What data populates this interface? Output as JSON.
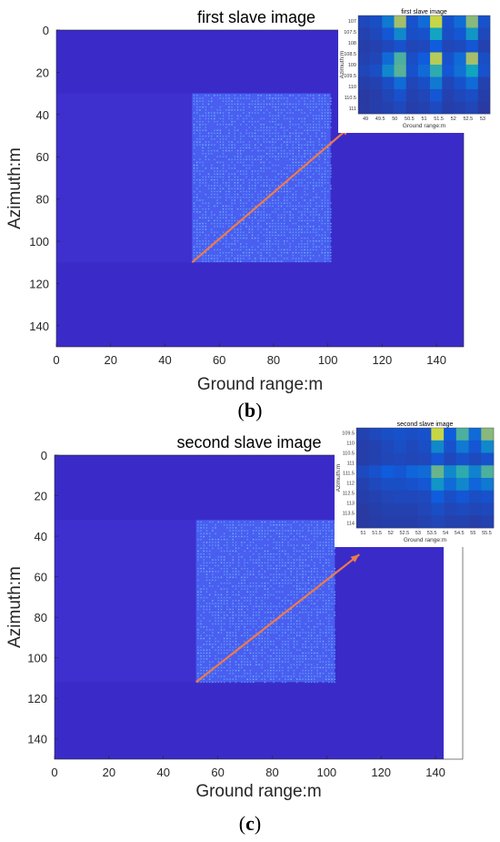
{
  "colors": {
    "background": "#3a2bc9",
    "background_alt": "#3d30cf",
    "scatter_region": "#4a5ef0",
    "scatter_dot": "#5fb0ff",
    "arrow": "#ee7a4a",
    "axis": "#262626"
  },
  "chart_data": [
    {
      "type": "heatmap",
      "panel_caption": "b",
      "title": "first slave image",
      "xlabel": "Ground range:m",
      "ylabel": "Azimuth:m",
      "xlim": [
        0,
        150
      ],
      "ylim": [
        150,
        0
      ],
      "x_extent": [
        0,
        150
      ],
      "xticks": [
        "0",
        "20",
        "40",
        "60",
        "80",
        "100",
        "120",
        "140"
      ],
      "yticks": [
        "0",
        "20",
        "40",
        "60",
        "80",
        "100",
        "120",
        "140"
      ],
      "xtick_values": [
        0,
        20,
        40,
        60,
        80,
        100,
        120,
        140
      ],
      "ytick_values": [
        0,
        20,
        40,
        60,
        80,
        100,
        120,
        140
      ],
      "bright_region": {
        "x": [
          50,
          101
        ],
        "y": [
          30,
          110
        ]
      },
      "arrow": {
        "from": [
          50,
          110
        ],
        "to": [
          108,
          46
        ]
      },
      "inset": {
        "title": "first slave image",
        "xlabel": "Ground range:m",
        "ylabel": "Azimuth:m",
        "xticks": [
          "49",
          "49.5",
          "50",
          "50.5",
          "51",
          "51.5",
          "52",
          "52.5",
          "53"
        ],
        "yticks": [
          "107",
          "107.5",
          "108",
          "108.5",
          "109",
          "109.5",
          "110",
          "110.5",
          "111"
        ],
        "grid": [
          [
            0.15,
            0.18,
            0.35,
            0.75,
            0.2,
            0.3,
            0.85,
            0.2,
            0.3,
            0.7,
            0.2
          ],
          [
            0.12,
            0.15,
            0.22,
            0.4,
            0.18,
            0.2,
            0.5,
            0.18,
            0.22,
            0.45,
            0.15
          ],
          [
            0.1,
            0.12,
            0.15,
            0.2,
            0.14,
            0.15,
            0.25,
            0.14,
            0.16,
            0.22,
            0.12
          ],
          [
            0.12,
            0.14,
            0.3,
            0.6,
            0.18,
            0.25,
            0.8,
            0.2,
            0.3,
            0.75,
            0.18
          ],
          [
            0.14,
            0.18,
            0.4,
            0.62,
            0.2,
            0.3,
            0.55,
            0.22,
            0.32,
            0.5,
            0.2
          ],
          [
            0.1,
            0.12,
            0.18,
            0.3,
            0.14,
            0.18,
            0.35,
            0.14,
            0.2,
            0.3,
            0.12
          ],
          [
            0.08,
            0.1,
            0.14,
            0.2,
            0.12,
            0.14,
            0.22,
            0.12,
            0.15,
            0.18,
            0.1
          ],
          [
            0.08,
            0.1,
            0.12,
            0.15,
            0.1,
            0.12,
            0.16,
            0.1,
            0.12,
            0.14,
            0.08
          ]
        ]
      }
    },
    {
      "type": "heatmap",
      "panel_caption": "c",
      "title": "second slave image",
      "xlabel": "Ground range:m",
      "ylabel": "Azimuth:m",
      "xlim": [
        0,
        150
      ],
      "ylim": [
        150,
        0
      ],
      "x_extent": [
        0,
        143
      ],
      "xticks": [
        "0",
        "20",
        "40",
        "60",
        "80",
        "100",
        "120",
        "140"
      ],
      "yticks": [
        "0",
        "20",
        "40",
        "60",
        "80",
        "100",
        "120",
        "140"
      ],
      "xtick_values": [
        0,
        20,
        40,
        60,
        80,
        100,
        120,
        140
      ],
      "ytick_values": [
        0,
        20,
        40,
        60,
        80,
        100,
        120,
        140
      ],
      "bright_region": {
        "x": [
          52,
          103
        ],
        "y": [
          32,
          112
        ]
      },
      "arrow": {
        "from": [
          52,
          112
        ],
        "to": [
          112,
          49
        ]
      },
      "inset": {
        "title": "second slave image",
        "xlabel": "Ground range:m",
        "ylabel": "Azimuth:m",
        "xticks": [
          "51",
          "51.5",
          "52",
          "52.5",
          "53",
          "53.5",
          "54",
          "54.5",
          "55",
          "55.5"
        ],
        "yticks": [
          "109.5",
          "110",
          "110.5",
          "111",
          "111.5",
          "112",
          "112.5",
          "113",
          "113.5",
          "114"
        ],
        "grid": [
          [
            0.12,
            0.15,
            0.18,
            0.2,
            0.18,
            0.2,
            0.85,
            0.25,
            0.6,
            0.3,
            0.7
          ],
          [
            0.1,
            0.12,
            0.15,
            0.18,
            0.15,
            0.18,
            0.4,
            0.2,
            0.35,
            0.22,
            0.4
          ],
          [
            0.1,
            0.12,
            0.14,
            0.15,
            0.14,
            0.15,
            0.22,
            0.15,
            0.2,
            0.16,
            0.2
          ],
          [
            0.16,
            0.2,
            0.25,
            0.22,
            0.28,
            0.3,
            0.65,
            0.4,
            0.55,
            0.38,
            0.6
          ],
          [
            0.12,
            0.15,
            0.18,
            0.18,
            0.2,
            0.22,
            0.45,
            0.3,
            0.4,
            0.28,
            0.35
          ],
          [
            0.1,
            0.12,
            0.14,
            0.15,
            0.15,
            0.16,
            0.25,
            0.18,
            0.22,
            0.18,
            0.2
          ],
          [
            0.08,
            0.1,
            0.12,
            0.12,
            0.12,
            0.14,
            0.18,
            0.14,
            0.16,
            0.14,
            0.15
          ],
          [
            0.08,
            0.09,
            0.1,
            0.1,
            0.1,
            0.12,
            0.14,
            0.12,
            0.12,
            0.1,
            0.12
          ]
        ]
      }
    }
  ],
  "captions": [
    "b",
    "c"
  ]
}
